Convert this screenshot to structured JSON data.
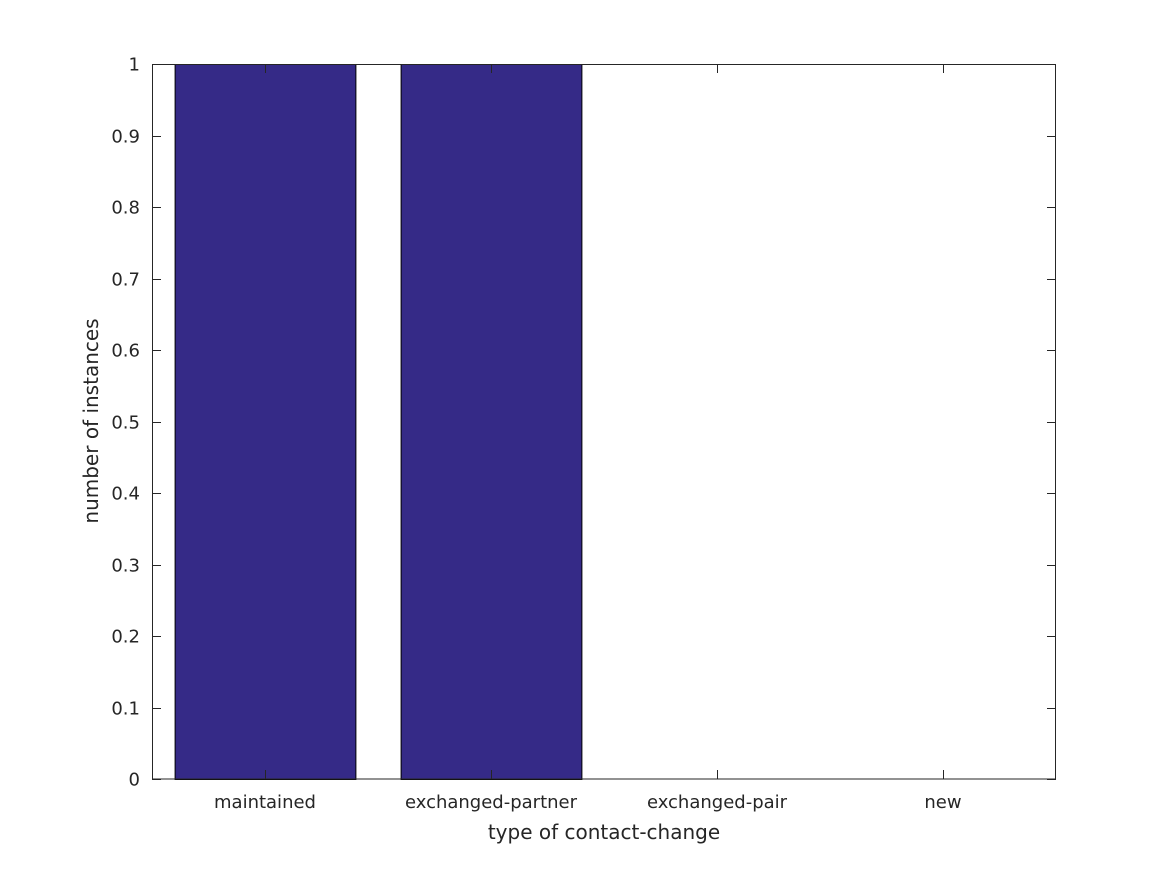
{
  "chart_data": {
    "type": "bar",
    "categories": [
      "maintained",
      "exchanged-partner",
      "exchanged-pair",
      "new"
    ],
    "values": [
      1,
      1,
      0,
      0
    ],
    "title": "",
    "xlabel": "type of contact-change",
    "ylabel": "number of instances",
    "ylim": [
      0,
      1
    ],
    "yticks": [
      "0",
      "0.1",
      "0.2",
      "0.3",
      "0.4",
      "0.5",
      "0.6",
      "0.7",
      "0.8",
      "0.9",
      "1"
    ],
    "grid": false,
    "bar_color": "#352a87"
  }
}
